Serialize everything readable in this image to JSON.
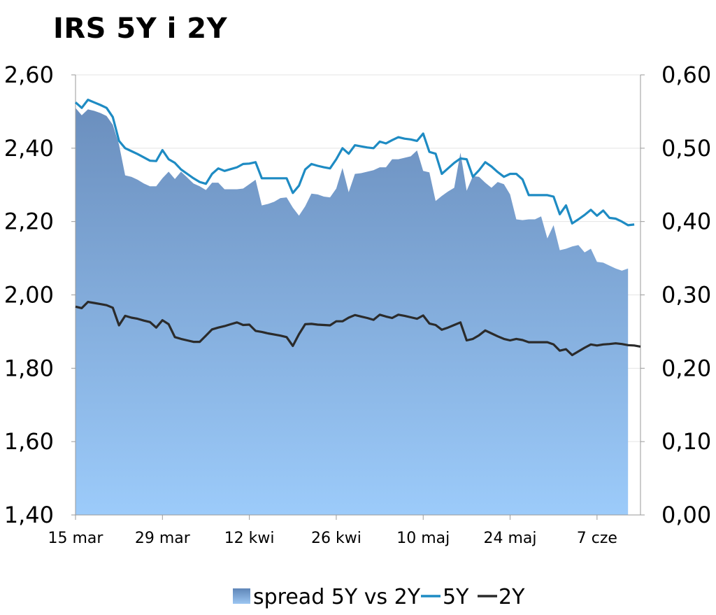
{
  "chart_data": {
    "type": "area+line",
    "title": "IRS 5Y i 2Y",
    "left_axis": {
      "ylim": [
        1.4,
        2.6
      ],
      "ticks": [
        "1,40",
        "1,60",
        "1,80",
        "2,00",
        "2,20",
        "2,40",
        "2,60"
      ]
    },
    "right_axis": {
      "ylim": [
        0.0,
        0.6
      ],
      "ticks": [
        "0,00",
        "0,10",
        "0,20",
        "0,30",
        "0,40",
        "0,50",
        "0,60"
      ]
    },
    "x_ticks": [
      "15 mar",
      "29 mar",
      "12 kwi",
      "26 kwi",
      "10 maj",
      "24 maj",
      "7 cze"
    ],
    "x_range": [
      0,
      90
    ],
    "series": [
      {
        "name": "spread 5Y vs 2Y",
        "kind": "area",
        "axis": "right",
        "points": [
          [
            0,
            0.555
          ],
          [
            1,
            0.545
          ],
          [
            2,
            0.553
          ],
          [
            3,
            0.551
          ],
          [
            4,
            0.548
          ],
          [
            5,
            0.544
          ],
          [
            6,
            0.532
          ],
          [
            7,
            0.505
          ],
          [
            8,
            0.463
          ],
          [
            9,
            0.461
          ],
          [
            10,
            0.457
          ],
          [
            11,
            0.452
          ],
          [
            12,
            0.448
          ],
          [
            13,
            0.448
          ],
          [
            14,
            0.459
          ],
          [
            15,
            0.468
          ],
          [
            16,
            0.458
          ],
          [
            17,
            0.468
          ],
          [
            18,
            0.46
          ],
          [
            19,
            0.452
          ],
          [
            20,
            0.448
          ],
          [
            21,
            0.443
          ],
          [
            22,
            0.453
          ],
          [
            23,
            0.453
          ],
          [
            24,
            0.444
          ],
          [
            25,
            0.444
          ],
          [
            26,
            0.444
          ],
          [
            27,
            0.445
          ],
          [
            28,
            0.451
          ],
          [
            29,
            0.457
          ],
          [
            30,
            0.422
          ],
          [
            31,
            0.424
          ],
          [
            32,
            0.427
          ],
          [
            33,
            0.432
          ],
          [
            34,
            0.433
          ],
          [
            35,
            0.419
          ],
          [
            36,
            0.408
          ],
          [
            37,
            0.421
          ],
          [
            38,
            0.438
          ],
          [
            39,
            0.437
          ],
          [
            40,
            0.434
          ],
          [
            41,
            0.433
          ],
          [
            42,
            0.445
          ],
          [
            43,
            0.473
          ],
          [
            44,
            0.44
          ],
          [
            45,
            0.465
          ],
          [
            46,
            0.466
          ],
          [
            47,
            0.468
          ],
          [
            48,
            0.47
          ],
          [
            49,
            0.474
          ],
          [
            50,
            0.474
          ],
          [
            51,
            0.485
          ],
          [
            52,
            0.485
          ],
          [
            53,
            0.487
          ],
          [
            54,
            0.489
          ],
          [
            55,
            0.497
          ],
          [
            56,
            0.469
          ],
          [
            57,
            0.467
          ],
          [
            58,
            0.428
          ],
          [
            59,
            0.435
          ],
          [
            60,
            0.441
          ],
          [
            61,
            0.446
          ],
          [
            62,
            0.494
          ],
          [
            63,
            0.442
          ],
          [
            64,
            0.462
          ],
          [
            65,
            0.461
          ],
          [
            66,
            0.453
          ],
          [
            67,
            0.446
          ],
          [
            68,
            0.454
          ],
          [
            69,
            0.451
          ],
          [
            70,
            0.437
          ],
          [
            71,
            0.403
          ],
          [
            72,
            0.402
          ],
          [
            73,
            0.403
          ],
          [
            74,
            0.403
          ],
          [
            75,
            0.407
          ],
          [
            76,
            0.377
          ],
          [
            77,
            0.395
          ],
          [
            78,
            0.361
          ],
          [
            79,
            0.363
          ],
          [
            80,
            0.366
          ],
          [
            81,
            0.368
          ],
          [
            82,
            0.358
          ],
          [
            83,
            0.363
          ],
          [
            84,
            0.345
          ],
          [
            85,
            0.344
          ],
          [
            86,
            0.34
          ],
          [
            87,
            0.336
          ],
          [
            88,
            0.333
          ],
          [
            89,
            0.336
          ]
        ]
      },
      {
        "name": "5Y",
        "kind": "line",
        "axis": "left",
        "color": "#1E8BC3",
        "points": [
          [
            0,
            2.525
          ],
          [
            1,
            2.51
          ],
          [
            2,
            2.532
          ],
          [
            3,
            2.525
          ],
          [
            4,
            2.518
          ],
          [
            5,
            2.51
          ],
          [
            6,
            2.485
          ],
          [
            7,
            2.42
          ],
          [
            8,
            2.4
          ],
          [
            9,
            2.392
          ],
          [
            10,
            2.384
          ],
          [
            11,
            2.375
          ],
          [
            12,
            2.366
          ],
          [
            13,
            2.365
          ],
          [
            14,
            2.395
          ],
          [
            15,
            2.37
          ],
          [
            16,
            2.36
          ],
          [
            17,
            2.342
          ],
          [
            18,
            2.33
          ],
          [
            19,
            2.318
          ],
          [
            20,
            2.308
          ],
          [
            21,
            2.303
          ],
          [
            22,
            2.33
          ],
          [
            23,
            2.345
          ],
          [
            24,
            2.338
          ],
          [
            25,
            2.343
          ],
          [
            26,
            2.348
          ],
          [
            27,
            2.357
          ],
          [
            28,
            2.358
          ],
          [
            29,
            2.362
          ],
          [
            30,
            2.318
          ],
          [
            31,
            2.318
          ],
          [
            32,
            2.318
          ],
          [
            33,
            2.318
          ],
          [
            34,
            2.318
          ],
          [
            35,
            2.278
          ],
          [
            36,
            2.298
          ],
          [
            37,
            2.342
          ],
          [
            38,
            2.357
          ],
          [
            39,
            2.352
          ],
          [
            40,
            2.348
          ],
          [
            41,
            2.345
          ],
          [
            42,
            2.37
          ],
          [
            43,
            2.4
          ],
          [
            44,
            2.385
          ],
          [
            45,
            2.408
          ],
          [
            46,
            2.405
          ],
          [
            47,
            2.402
          ],
          [
            48,
            2.4
          ],
          [
            49,
            2.418
          ],
          [
            50,
            2.413
          ],
          [
            51,
            2.422
          ],
          [
            52,
            2.43
          ],
          [
            53,
            2.426
          ],
          [
            54,
            2.424
          ],
          [
            55,
            2.42
          ],
          [
            56,
            2.44
          ],
          [
            57,
            2.39
          ],
          [
            58,
            2.385
          ],
          [
            59,
            2.33
          ],
          [
            60,
            2.345
          ],
          [
            61,
            2.36
          ],
          [
            62,
            2.372
          ],
          [
            63,
            2.37
          ],
          [
            64,
            2.322
          ],
          [
            65,
            2.34
          ],
          [
            66,
            2.362
          ],
          [
            67,
            2.35
          ],
          [
            68,
            2.335
          ],
          [
            69,
            2.322
          ],
          [
            70,
            2.33
          ],
          [
            71,
            2.33
          ],
          [
            72,
            2.315
          ],
          [
            73,
            2.272
          ],
          [
            74,
            2.272
          ],
          [
            75,
            2.272
          ],
          [
            76,
            2.272
          ],
          [
            77,
            2.268
          ],
          [
            78,
            2.22
          ],
          [
            79,
            2.244
          ],
          [
            80,
            2.195
          ],
          [
            81,
            2.206
          ],
          [
            82,
            2.218
          ],
          [
            83,
            2.232
          ],
          [
            84,
            2.216
          ],
          [
            85,
            2.23
          ],
          [
            86,
            2.21
          ],
          [
            87,
            2.208
          ],
          [
            88,
            2.2
          ],
          [
            89,
            2.19
          ],
          [
            90,
            2.192
          ]
        ]
      },
      {
        "name": "2Y",
        "kind": "line",
        "axis": "left",
        "color": "#2B2B2B",
        "points": [
          [
            0,
            1.968
          ],
          [
            1,
            1.964
          ],
          [
            2,
            1.981
          ],
          [
            3,
            1.978
          ],
          [
            4,
            1.975
          ],
          [
            5,
            1.972
          ],
          [
            6,
            1.965
          ],
          [
            7,
            1.917
          ],
          [
            8,
            1.943
          ],
          [
            9,
            1.938
          ],
          [
            10,
            1.935
          ],
          [
            11,
            1.93
          ],
          [
            12,
            1.926
          ],
          [
            13,
            1.911
          ],
          [
            14,
            1.931
          ],
          [
            15,
            1.92
          ],
          [
            16,
            1.885
          ],
          [
            17,
            1.88
          ],
          [
            18,
            1.876
          ],
          [
            19,
            1.872
          ],
          [
            20,
            1.872
          ],
          [
            21,
            1.889
          ],
          [
            22,
            1.906
          ],
          [
            23,
            1.911
          ],
          [
            24,
            1.915
          ],
          [
            25,
            1.92
          ],
          [
            26,
            1.925
          ],
          [
            27,
            1.918
          ],
          [
            28,
            1.919
          ],
          [
            29,
            1.902
          ],
          [
            30,
            1.899
          ],
          [
            31,
            1.895
          ],
          [
            32,
            1.892
          ],
          [
            33,
            1.889
          ],
          [
            34,
            1.885
          ],
          [
            35,
            1.861
          ],
          [
            36,
            1.893
          ],
          [
            37,
            1.92
          ],
          [
            38,
            1.921
          ],
          [
            39,
            1.919
          ],
          [
            40,
            1.918
          ],
          [
            41,
            1.917
          ],
          [
            42,
            1.928
          ],
          [
            43,
            1.928
          ],
          [
            44,
            1.938
          ],
          [
            45,
            1.945
          ],
          [
            46,
            1.941
          ],
          [
            47,
            1.937
          ],
          [
            48,
            1.932
          ],
          [
            49,
            1.946
          ],
          [
            50,
            1.941
          ],
          [
            51,
            1.937
          ],
          [
            52,
            1.946
          ],
          [
            53,
            1.943
          ],
          [
            54,
            1.939
          ],
          [
            55,
            1.935
          ],
          [
            56,
            1.944
          ],
          [
            57,
            1.922
          ],
          [
            58,
            1.918
          ],
          [
            59,
            1.905
          ],
          [
            60,
            1.911
          ],
          [
            61,
            1.918
          ],
          [
            62,
            1.925
          ],
          [
            63,
            1.876
          ],
          [
            64,
            1.88
          ],
          [
            65,
            1.89
          ],
          [
            66,
            1.903
          ],
          [
            67,
            1.895
          ],
          [
            68,
            1.887
          ],
          [
            69,
            1.88
          ],
          [
            70,
            1.876
          ],
          [
            71,
            1.88
          ],
          [
            72,
            1.877
          ],
          [
            73,
            1.871
          ],
          [
            74,
            1.871
          ],
          [
            75,
            1.871
          ],
          [
            76,
            1.871
          ],
          [
            77,
            1.865
          ],
          [
            78,
            1.848
          ],
          [
            79,
            1.852
          ],
          [
            80,
            1.836
          ],
          [
            81,
            1.846
          ],
          [
            82,
            1.856
          ],
          [
            83,
            1.865
          ],
          [
            84,
            1.862
          ],
          [
            85,
            1.865
          ],
          [
            86,
            1.866
          ],
          [
            87,
            1.868
          ],
          [
            88,
            1.866
          ],
          [
            89,
            1.863
          ],
          [
            90,
            1.862
          ],
          [
            91,
            1.859
          ]
        ]
      }
    ],
    "grid": "horizontal",
    "legend": {
      "placement": "bottom",
      "entries": [
        "spread 5Y vs 2Y",
        "5Y",
        "2Y"
      ]
    }
  }
}
